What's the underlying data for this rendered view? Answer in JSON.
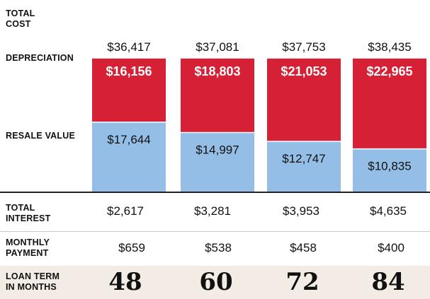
{
  "labels": {
    "total_cost": "TOTAL\nCOST",
    "depreciation": "DEPRECIATION",
    "resale_value": "RESALE VALUE",
    "total_interest": "TOTAL\nINTEREST",
    "monthly_payment": "MONTHLY\nPAYMENT",
    "loan_term": "LOAN TERM\nIN MONTHS"
  },
  "colors": {
    "depreciation": "#d62035",
    "resale_value": "#94bee6",
    "baseline": "#222222"
  },
  "chart_data": {
    "type": "bar",
    "stacked": true,
    "categories": [
      "48",
      "60",
      "72",
      "84"
    ],
    "total_cost_labels": [
      "$36,417",
      "$37,081",
      "$37,753",
      "$38,435"
    ],
    "series": [
      {
        "name": "RESALE VALUE",
        "values": [
          17644,
          14997,
          12747,
          10835
        ],
        "labels": [
          "$17,644",
          "$14,997",
          "$12,747",
          "$10,835"
        ]
      },
      {
        "name": "DEPRECIATION",
        "values": [
          16156,
          18803,
          21053,
          22965
        ],
        "labels": [
          "$16,156",
          "$18,803",
          "$21,053",
          "$22,965"
        ]
      }
    ]
  },
  "rows": {
    "total_interest": [
      "$2,617",
      "$3,281",
      "$3,953",
      "$4,635"
    ],
    "monthly_payment": [
      "$659",
      "$538",
      "$458",
      "$400"
    ],
    "loan_term": [
      "48",
      "60",
      "72",
      "84"
    ]
  }
}
